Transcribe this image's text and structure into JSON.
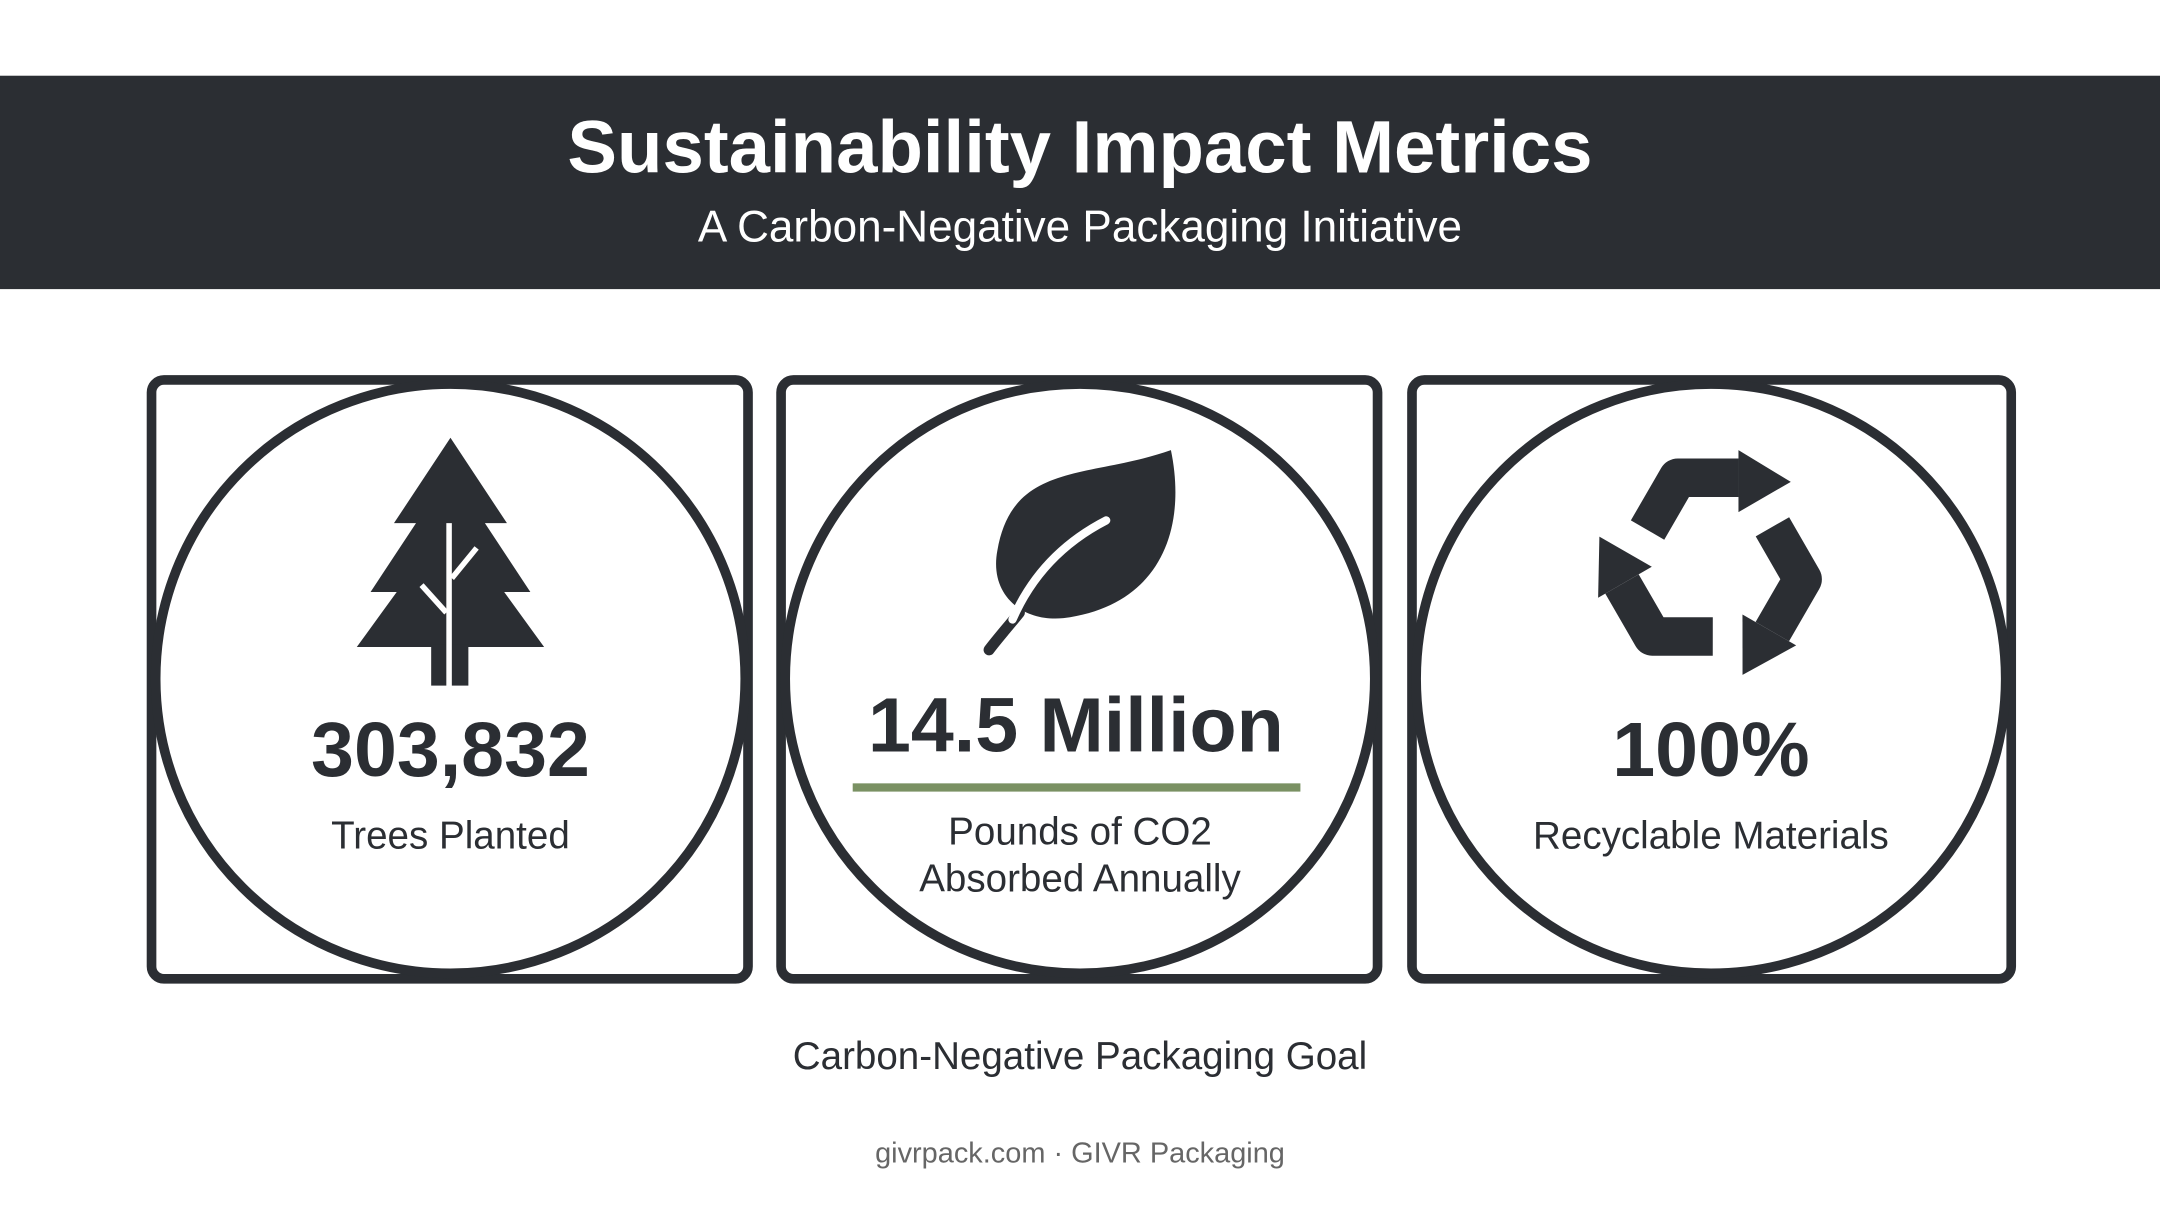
{
  "header": {
    "title": "Sustainability Impact Metrics",
    "subtitle": "A Carbon-Negative Packaging Initiative"
  },
  "metrics": [
    {
      "value": "303,832",
      "label_lines": [
        "Trees Planted"
      ]
    },
    {
      "value": "14.5 Million",
      "label_lines": [
        "Pounds of CO2",
        "Absorbed Annually"
      ]
    },
    {
      "value": "100%",
      "label_lines": [
        "Recyclable Materials"
      ]
    }
  ],
  "caption": "Carbon-Negative Packaging Goal",
  "footer": "givrpack.com · GIVR Packaging"
}
